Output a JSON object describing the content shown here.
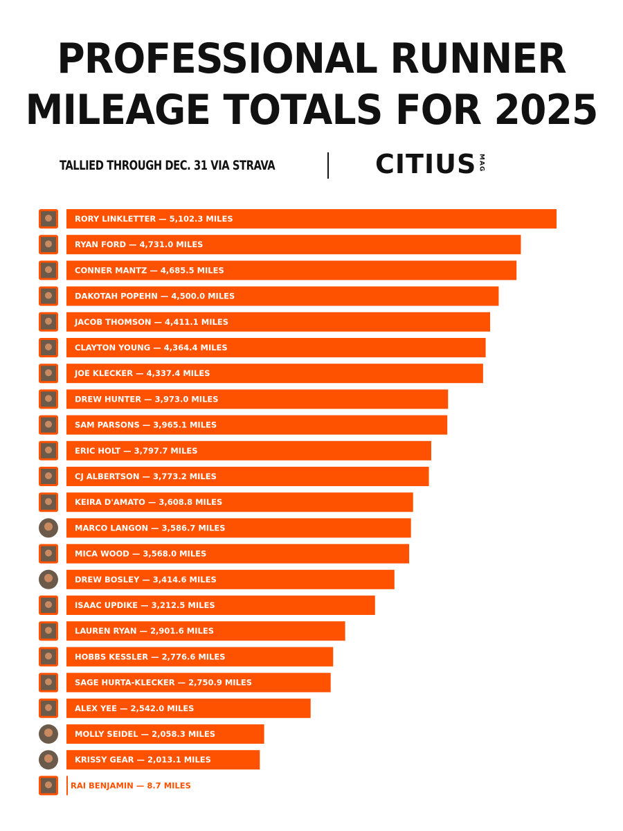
{
  "header": {
    "title_line1": "PROFESSIONAL RUNNER",
    "title_line2": "MILEAGE TOTALS FOR 2025",
    "subtitle": "TALLIED THROUGH DEC. 31 VIA STRAVA",
    "brand": "CITIUS",
    "brand_sub": "MAG"
  },
  "colors": {
    "bar": "#ff5200",
    "background": "#ffffff",
    "text": "#111111"
  },
  "chart_data": {
    "type": "bar",
    "orientation": "horizontal",
    "title": "PROFESSIONAL RUNNER MILEAGE TOTALS FOR 2025",
    "subtitle": "TALLIED THROUGH DEC. 31 VIA STRAVA",
    "xlim": [
      0,
      5102.3
    ],
    "grid": false,
    "categories": [
      "RORY LINKLETTER",
      "RYAN FORD",
      "CONNER MANTZ",
      "DAKOTAH POPEHN",
      "JACOB THOMSON",
      "CLAYTON YOUNG",
      "JOE KLECKER",
      "DREW HUNTER",
      "SAM PARSONS",
      "ERIC HOLT",
      "CJ ALBERTSON",
      "KEIRA D'AMATO",
      "MARCO LANGON",
      "MICA WOOD",
      "DREW BOSLEY",
      "ISAAC UPDIKE",
      "LAUREN RYAN",
      "HOBBS KESSLER",
      "SAGE HURTA-KLECKER",
      "ALEX YEE",
      "MOLLY SEIDEL",
      "KRISSY GEAR",
      "RAI BENJAMIN"
    ],
    "values": [
      5102.3,
      4731.0,
      4685.5,
      4500.0,
      4411.1,
      4364.4,
      4337.4,
      3973.0,
      3965.1,
      3797.7,
      3773.2,
      3608.8,
      3586.7,
      3568.0,
      3414.6,
      3212.5,
      2901.6,
      2776.6,
      2750.9,
      2542.0,
      2058.3,
      2013.1,
      8.7
    ],
    "labels": [
      "RORY LINKLETTER — 5,102.3 MILES",
      "RYAN FORD — 4,731.0 MILES",
      "CONNER MANTZ — 4,685.5 MILES",
      "DAKOTAH POPEHN — 4,500.0 MILES",
      "JACOB THOMSON — 4,411.1 MILES",
      "CLAYTON YOUNG — 4,364.4 MILES",
      "JOE KLECKER — 4,337.4 MILES",
      "DREW HUNTER — 3,973.0 MILES",
      "SAM PARSONS — 3,965.1 MILES",
      "ERIC HOLT — 3,797.7 MILES",
      "CJ ALBERTSON — 3,773.2 MILES",
      "KEIRA D'AMATO — 3,608.8 MILES",
      "MARCO LANGON — 3,586.7 MILES",
      "MICA WOOD — 3,568.0 MILES",
      "DREW BOSLEY — 3,414.6 MILES",
      "ISAAC UPDIKE — 3,212.5 MILES",
      "LAUREN RYAN — 2,901.6 MILES",
      "HOBBS KESSLER — 2,776.6 MILES",
      "SAGE HURTA-KLECKER — 2,750.9 MILES",
      "ALEX YEE — 2,542.0 MILES",
      "MOLLY SEIDEL — 2,058.3 MILES",
      "KRISSY GEAR — 2,013.1 MILES",
      "RAI BENJAMIN — 8.7 MILES"
    ],
    "avatar_shapes": [
      "square",
      "square",
      "square",
      "square",
      "square",
      "square",
      "square",
      "square",
      "square",
      "square",
      "square",
      "square",
      "circle",
      "square",
      "circle",
      "square",
      "square",
      "square",
      "square",
      "square",
      "circle",
      "circle",
      "square"
    ]
  }
}
